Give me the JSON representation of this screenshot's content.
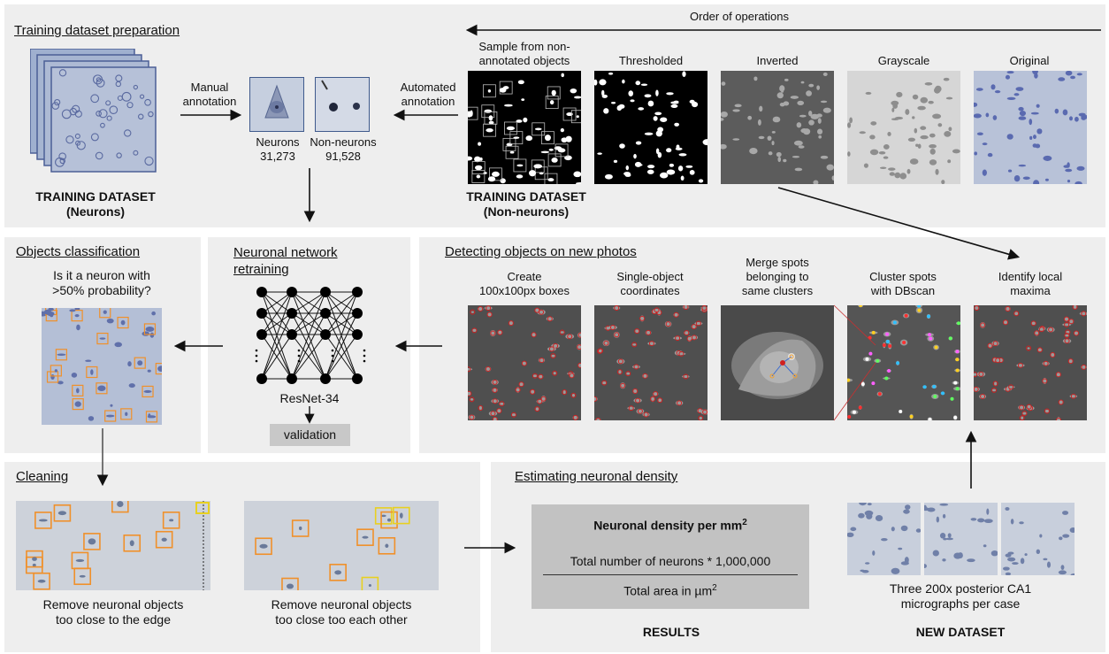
{
  "top_panel": {
    "title": "Training dataset preparation",
    "order_label": "Order of operations",
    "manual_annotation": [
      "Manual",
      "annotation"
    ],
    "automated_annotation": [
      "Automated",
      "annotation"
    ],
    "neurons_label": "Neurons",
    "neurons_count": "31,273",
    "non_neurons_label": "Non-neurons",
    "non_neurons_count": "91,528",
    "training_neurons": [
      "TRAINING DATASET",
      "(Neurons)"
    ],
    "training_non_neurons": [
      "TRAINING DATASET",
      "(Non-neurons)"
    ],
    "steps": [
      {
        "label": [
          "Sample from non-",
          "annotated objects"
        ]
      },
      {
        "label": [
          "Thresholded"
        ]
      },
      {
        "label": [
          "Inverted"
        ]
      },
      {
        "label": [
          "Grayscale"
        ]
      },
      {
        "label": [
          "Original"
        ]
      }
    ]
  },
  "classification_panel": {
    "title": "Objects classification",
    "question": [
      "Is it a neuron with",
      ">50% probability?"
    ]
  },
  "network_panel": {
    "title": [
      "Neuronal network",
      "retraining"
    ],
    "model": "ResNet-34",
    "validation": "validation"
  },
  "detection_panel": {
    "title": "Detecting objects on new photos",
    "steps": [
      {
        "label": [
          "Create",
          "100x100px boxes"
        ]
      },
      {
        "label": [
          "Single-object",
          "coordinates"
        ]
      },
      {
        "label": [
          "Merge spots",
          "belonging to",
          "same clusters"
        ]
      },
      {
        "label": [
          "Cluster spots",
          "with DBscan"
        ]
      },
      {
        "label": [
          "Identify local",
          "maxima"
        ]
      }
    ]
  },
  "cleaning_panel": {
    "title": "Cleaning",
    "edge_caption": [
      "Remove neuronal objects",
      "too close to the edge"
    ],
    "proximity_caption": [
      "Remove neuronal objects",
      "too close too each other"
    ]
  },
  "density_panel": {
    "title": "Estimating neuronal density",
    "formula_title": "Neuronal density per mm",
    "formula_title_sup": "2",
    "numerator": "Total number of neurons * 1,000,000",
    "denominator": "Total area in µm",
    "denominator_sup": "2",
    "results_label": "RESULTS",
    "new_dataset_caption": [
      "Three 200x posterior CA1",
      "micrographs per case"
    ],
    "new_dataset_label": "NEW DATASET"
  },
  "colors": {
    "panel_bg": "#eeeeee",
    "micrograph_blue": "#aab6cc",
    "box_orange": "#f0902a",
    "box_yellow": "#e8d020",
    "detect_red": "#d02020",
    "formula_bg": "#c2c2c2",
    "validation_bg": "#c8c8c8"
  }
}
